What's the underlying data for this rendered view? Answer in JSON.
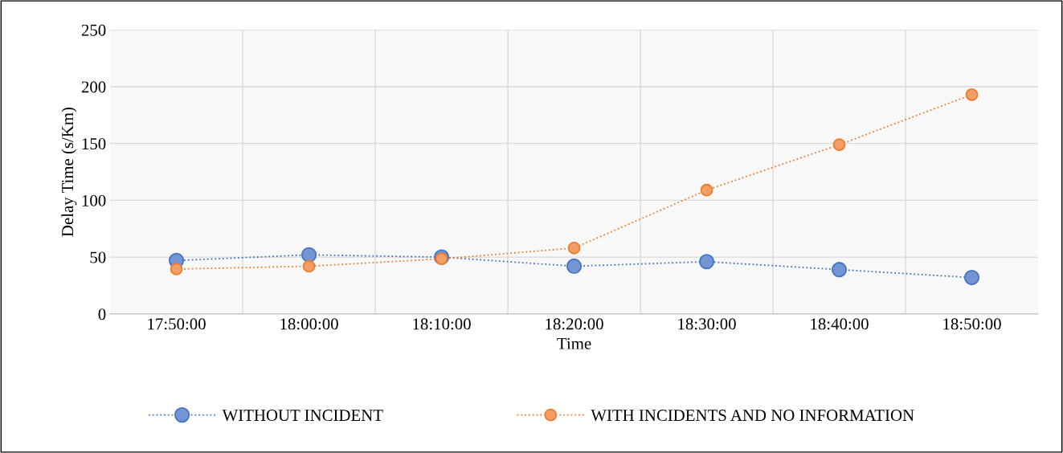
{
  "chart_data": {
    "type": "line",
    "xlabel": "Time",
    "ylabel": "Delay Time (s/Km)",
    "categories": [
      "17:50:00",
      "18:00:00",
      "18:10:00",
      "18:20:00",
      "18:30:00",
      "18:40:00",
      "18:50:00"
    ],
    "series": [
      {
        "name": "WITHOUT INCIDENT",
        "color": "#4472c4",
        "values": [
          47,
          52,
          50,
          42,
          46,
          39,
          32
        ]
      },
      {
        "name": "WITH INCIDENTS AND NO INFORMATION",
        "color": "#ed7d31",
        "values": [
          39.5,
          42,
          48.5,
          58,
          109,
          149,
          193
        ]
      }
    ],
    "ylim": [
      0,
      250
    ],
    "yticks": [
      0,
      50,
      100,
      150,
      200,
      250
    ],
    "grid": true,
    "legend": "bottom",
    "marker": "circle",
    "line_style": "dotted"
  }
}
